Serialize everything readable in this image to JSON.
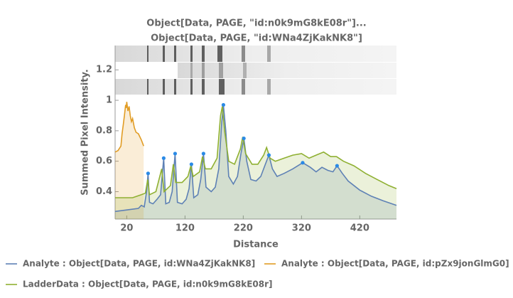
{
  "chart_data": {
    "type": "line",
    "title_lines": [
      "Object[Data, PAGE, \"id:n0k9mG8kE08r\"]...",
      "Object[Data, PAGE, \"id:WNa4ZjKakNK8\"]"
    ],
    "x_label": "Distance",
    "y_label": "Summed Pixel Intensity.",
    "xlim": [
      0,
      483
    ],
    "ylim": [
      0.22,
      1.36
    ],
    "xticks": [
      20,
      120,
      220,
      320,
      420
    ],
    "yticks": [
      0.4,
      0.6,
      0.8,
      1.0,
      1.2
    ],
    "series": [
      {
        "name": "Analyte : Object[Data, PAGE, id:WNa4ZjKakNK8]",
        "color": "#5e81b5",
        "fill": "rgba(94,129,181,0.18)",
        "x": [
          0,
          20,
          40,
          45,
          50,
          54,
          56.6,
          59,
          65,
          72,
          78,
          83.4,
          87,
          93,
          98,
          103,
          107,
          115,
          122,
          127,
          131,
          135,
          142,
          147,
          151.7,
          156,
          165,
          172,
          178,
          183,
          185.9,
          190,
          195,
          203,
          210,
          216,
          221,
          226,
          233,
          242,
          250,
          258,
          264,
          270,
          278,
          290,
          305,
          322,
          335,
          345,
          355,
          365,
          374,
          381,
          390,
          400,
          420,
          440,
          460,
          483
        ],
        "values": [
          0.27,
          0.28,
          0.29,
          0.31,
          0.3,
          0.4,
          0.52,
          0.33,
          0.32,
          0.35,
          0.38,
          0.62,
          0.32,
          0.33,
          0.4,
          0.65,
          0.33,
          0.32,
          0.35,
          0.42,
          0.58,
          0.36,
          0.38,
          0.48,
          0.65,
          0.43,
          0.4,
          0.43,
          0.55,
          0.85,
          0.97,
          0.8,
          0.5,
          0.45,
          0.5,
          0.65,
          0.75,
          0.6,
          0.48,
          0.47,
          0.5,
          0.58,
          0.64,
          0.55,
          0.5,
          0.52,
          0.55,
          0.59,
          0.56,
          0.53,
          0.56,
          0.54,
          0.53,
          0.57,
          0.52,
          0.47,
          0.41,
          0.37,
          0.34,
          0.31
        ]
      },
      {
        "name": "Analyte : Object[Data, PAGE, id:pZx9jonGlmG0]",
        "color": "#e19c24",
        "fill": "rgba(225,156,36,0.18)",
        "x": [
          0,
          5,
          10,
          12,
          14,
          16,
          18,
          19,
          20,
          22,
          24,
          26,
          28,
          30,
          33,
          36,
          40,
          45,
          49
        ],
        "values": [
          0.66,
          0.67,
          0.7,
          0.78,
          0.84,
          0.9,
          0.97,
          0.95,
          0.99,
          0.93,
          0.96,
          0.9,
          0.86,
          0.88,
          0.82,
          0.79,
          0.78,
          0.74,
          0.7
        ]
      },
      {
        "name": "LadderData : Object[Data, PAGE, id:n0k9mG8kE08r]",
        "color": "#8fb032",
        "fill": "rgba(143,176,50,0.18)",
        "x": [
          0,
          30,
          45,
          52,
          56,
          59,
          70,
          80,
          84,
          95,
          100,
          104,
          115,
          125,
          130,
          134,
          145,
          150,
          155,
          165,
          175,
          181,
          184,
          188,
          195,
          205,
          215,
          219,
          224,
          235,
          245,
          255,
          260,
          266,
          275,
          290,
          305,
          320,
          333,
          345,
          358,
          370,
          380,
          392,
          410,
          430,
          450,
          470,
          483
        ],
        "values": [
          0.36,
          0.36,
          0.38,
          0.39,
          0.48,
          0.38,
          0.4,
          0.55,
          0.4,
          0.44,
          0.58,
          0.46,
          0.46,
          0.5,
          0.57,
          0.5,
          0.53,
          0.63,
          0.55,
          0.55,
          0.62,
          0.9,
          0.96,
          0.8,
          0.6,
          0.58,
          0.68,
          0.76,
          0.65,
          0.58,
          0.58,
          0.64,
          0.69,
          0.62,
          0.6,
          0.62,
          0.64,
          0.65,
          0.62,
          0.64,
          0.66,
          0.63,
          0.63,
          0.6,
          0.57,
          0.52,
          0.48,
          0.44,
          0.42
        ]
      }
    ],
    "peaks": {
      "color": "#2a8ae6",
      "x": [
        56.6,
        83.4,
        103,
        131,
        151.7,
        185.9,
        221,
        264,
        322,
        381
      ],
      "values": [
        0.52,
        0.62,
        0.65,
        0.58,
        0.65,
        0.97,
        0.75,
        0.64,
        0.59,
        0.57
      ]
    }
  }
}
